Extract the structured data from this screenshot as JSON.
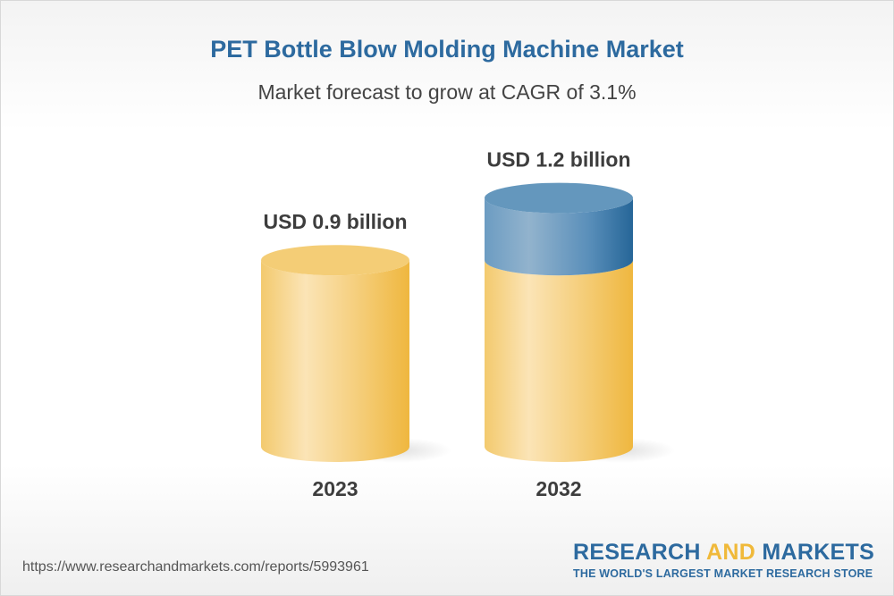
{
  "title": "PET Bottle Blow Molding Machine Market",
  "subtitle": "Market forecast to grow at CAGR of 3.1%",
  "chart_data": {
    "type": "bar",
    "style": "3d-cylinder",
    "categories": [
      "2023",
      "2032"
    ],
    "values": [
      0.9,
      1.2
    ],
    "unit": "USD billion",
    "data_labels": [
      "USD 0.9 billion",
      "USD 1.2 billion"
    ],
    "title": "PET Bottle Blow Molding Machine Market",
    "subtitle": "Market forecast to grow at CAGR of 3.1%",
    "cagr": "3.1%",
    "colors": {
      "base": "#f2c45e",
      "growth": "#2d6a9f"
    },
    "grid": false,
    "legend": "none"
  },
  "footer": {
    "url": "https://www.researchandmarkets.com/reports/5993961",
    "logo_part1": "RESEARCH",
    "logo_part2": "AND",
    "logo_part3": "MARKETS",
    "tagline": "THE WORLD'S LARGEST MARKET RESEARCH STORE"
  }
}
